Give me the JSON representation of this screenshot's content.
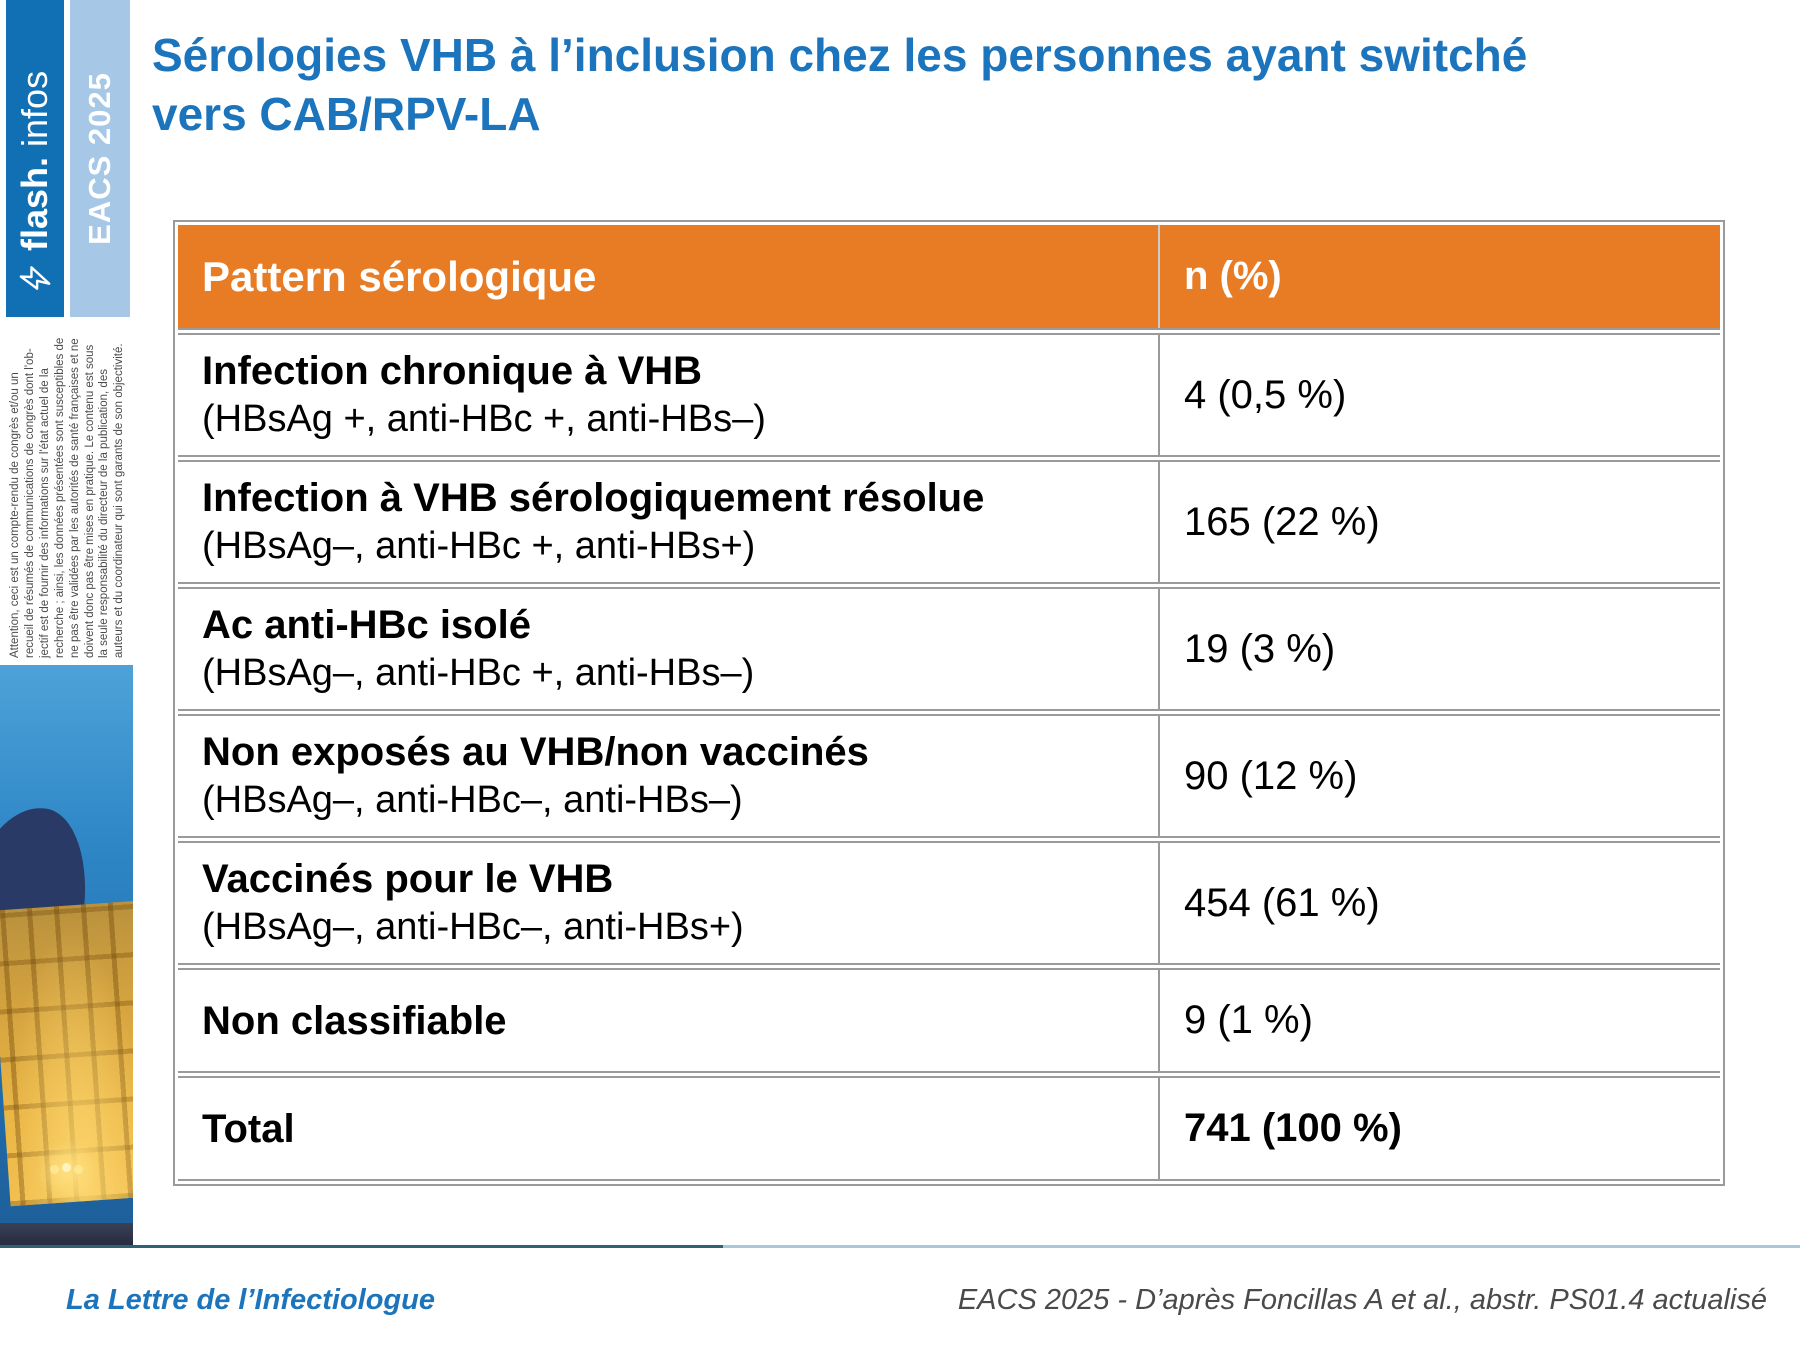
{
  "slide": {
    "title": "Sérologies VHB à l’inclusion chez les personnes ayant switché\nvers CAB/RPV-LA"
  },
  "sidebar": {
    "brand_bold": "flash.",
    "brand_light": "infos",
    "event_label": "EACS 2025",
    "disclaimer": "Attention, ceci est un compte-rendu de congrès et/ou un\nrecueil de résumés de communications de congrès dont l'ob-\njectif est de fournir des informations sur l'état actuel de la\nrecherche ; ainsi, les données présentées sont susceptibles de\nne pas être validées par les autorités de santé françaises et ne\ndoivent donc pas être mises en pratique. Le contenu est sous\nla seule responsabilité du directeur de la publication, des\nauteurs et du coordinateur qui sont garants de son objectivité."
  },
  "table": {
    "header": {
      "pattern": "Pattern sérologique",
      "n": "n (%)"
    },
    "rows": [
      {
        "title": "Infection chronique à VHB",
        "subtitle": "(HBsAg +, anti-HBc +, anti-HBs–)",
        "value": "4 (0,5 %)",
        "bold": false
      },
      {
        "title": "Infection à VHB sérologiquement résolue",
        "subtitle": "(HBsAg–, anti-HBc +, anti-HBs+)",
        "value": "165 (22 %)",
        "bold": false
      },
      {
        "title": "Ac anti-HBc isolé",
        "subtitle": "(HBsAg–, anti-HBc +, anti-HBs–)",
        "value": "19 (3 %)",
        "bold": false
      },
      {
        "title": "Non exposés au VHB/non vaccinés",
        "subtitle": "(HBsAg–, anti-HBc–, anti-HBs–)",
        "value": "90 (12 %)",
        "bold": false
      },
      {
        "title": "Vaccinés pour le VHB",
        "subtitle": "(HBsAg–, anti-HBc–, anti-HBs+)",
        "value": "454 (61 %)",
        "bold": false
      },
      {
        "title": "Non classifiable",
        "subtitle": "",
        "value": "9 (1 %)",
        "bold": false
      },
      {
        "title": "Total",
        "subtitle": "",
        "value": "741 (100 %)",
        "bold": true
      }
    ]
  },
  "footer": {
    "journal": "La Lettre de l’Infectiologue",
    "reference": "EACS 2025 - D’après Foncillas A et al., abstr. PS01.4 actualisé"
  },
  "colors": {
    "accent_orange": "#E87C25",
    "title_blue": "#1B74BC",
    "bar_dark_blue": "#1170B4",
    "bar_light_blue": "#A6C8E6",
    "table_border_gray": "#9A9A9A",
    "footer_reference_gray": "#4A4A4A",
    "rule_dark": "#2F6076",
    "rule_light": "#A9C7DC"
  }
}
